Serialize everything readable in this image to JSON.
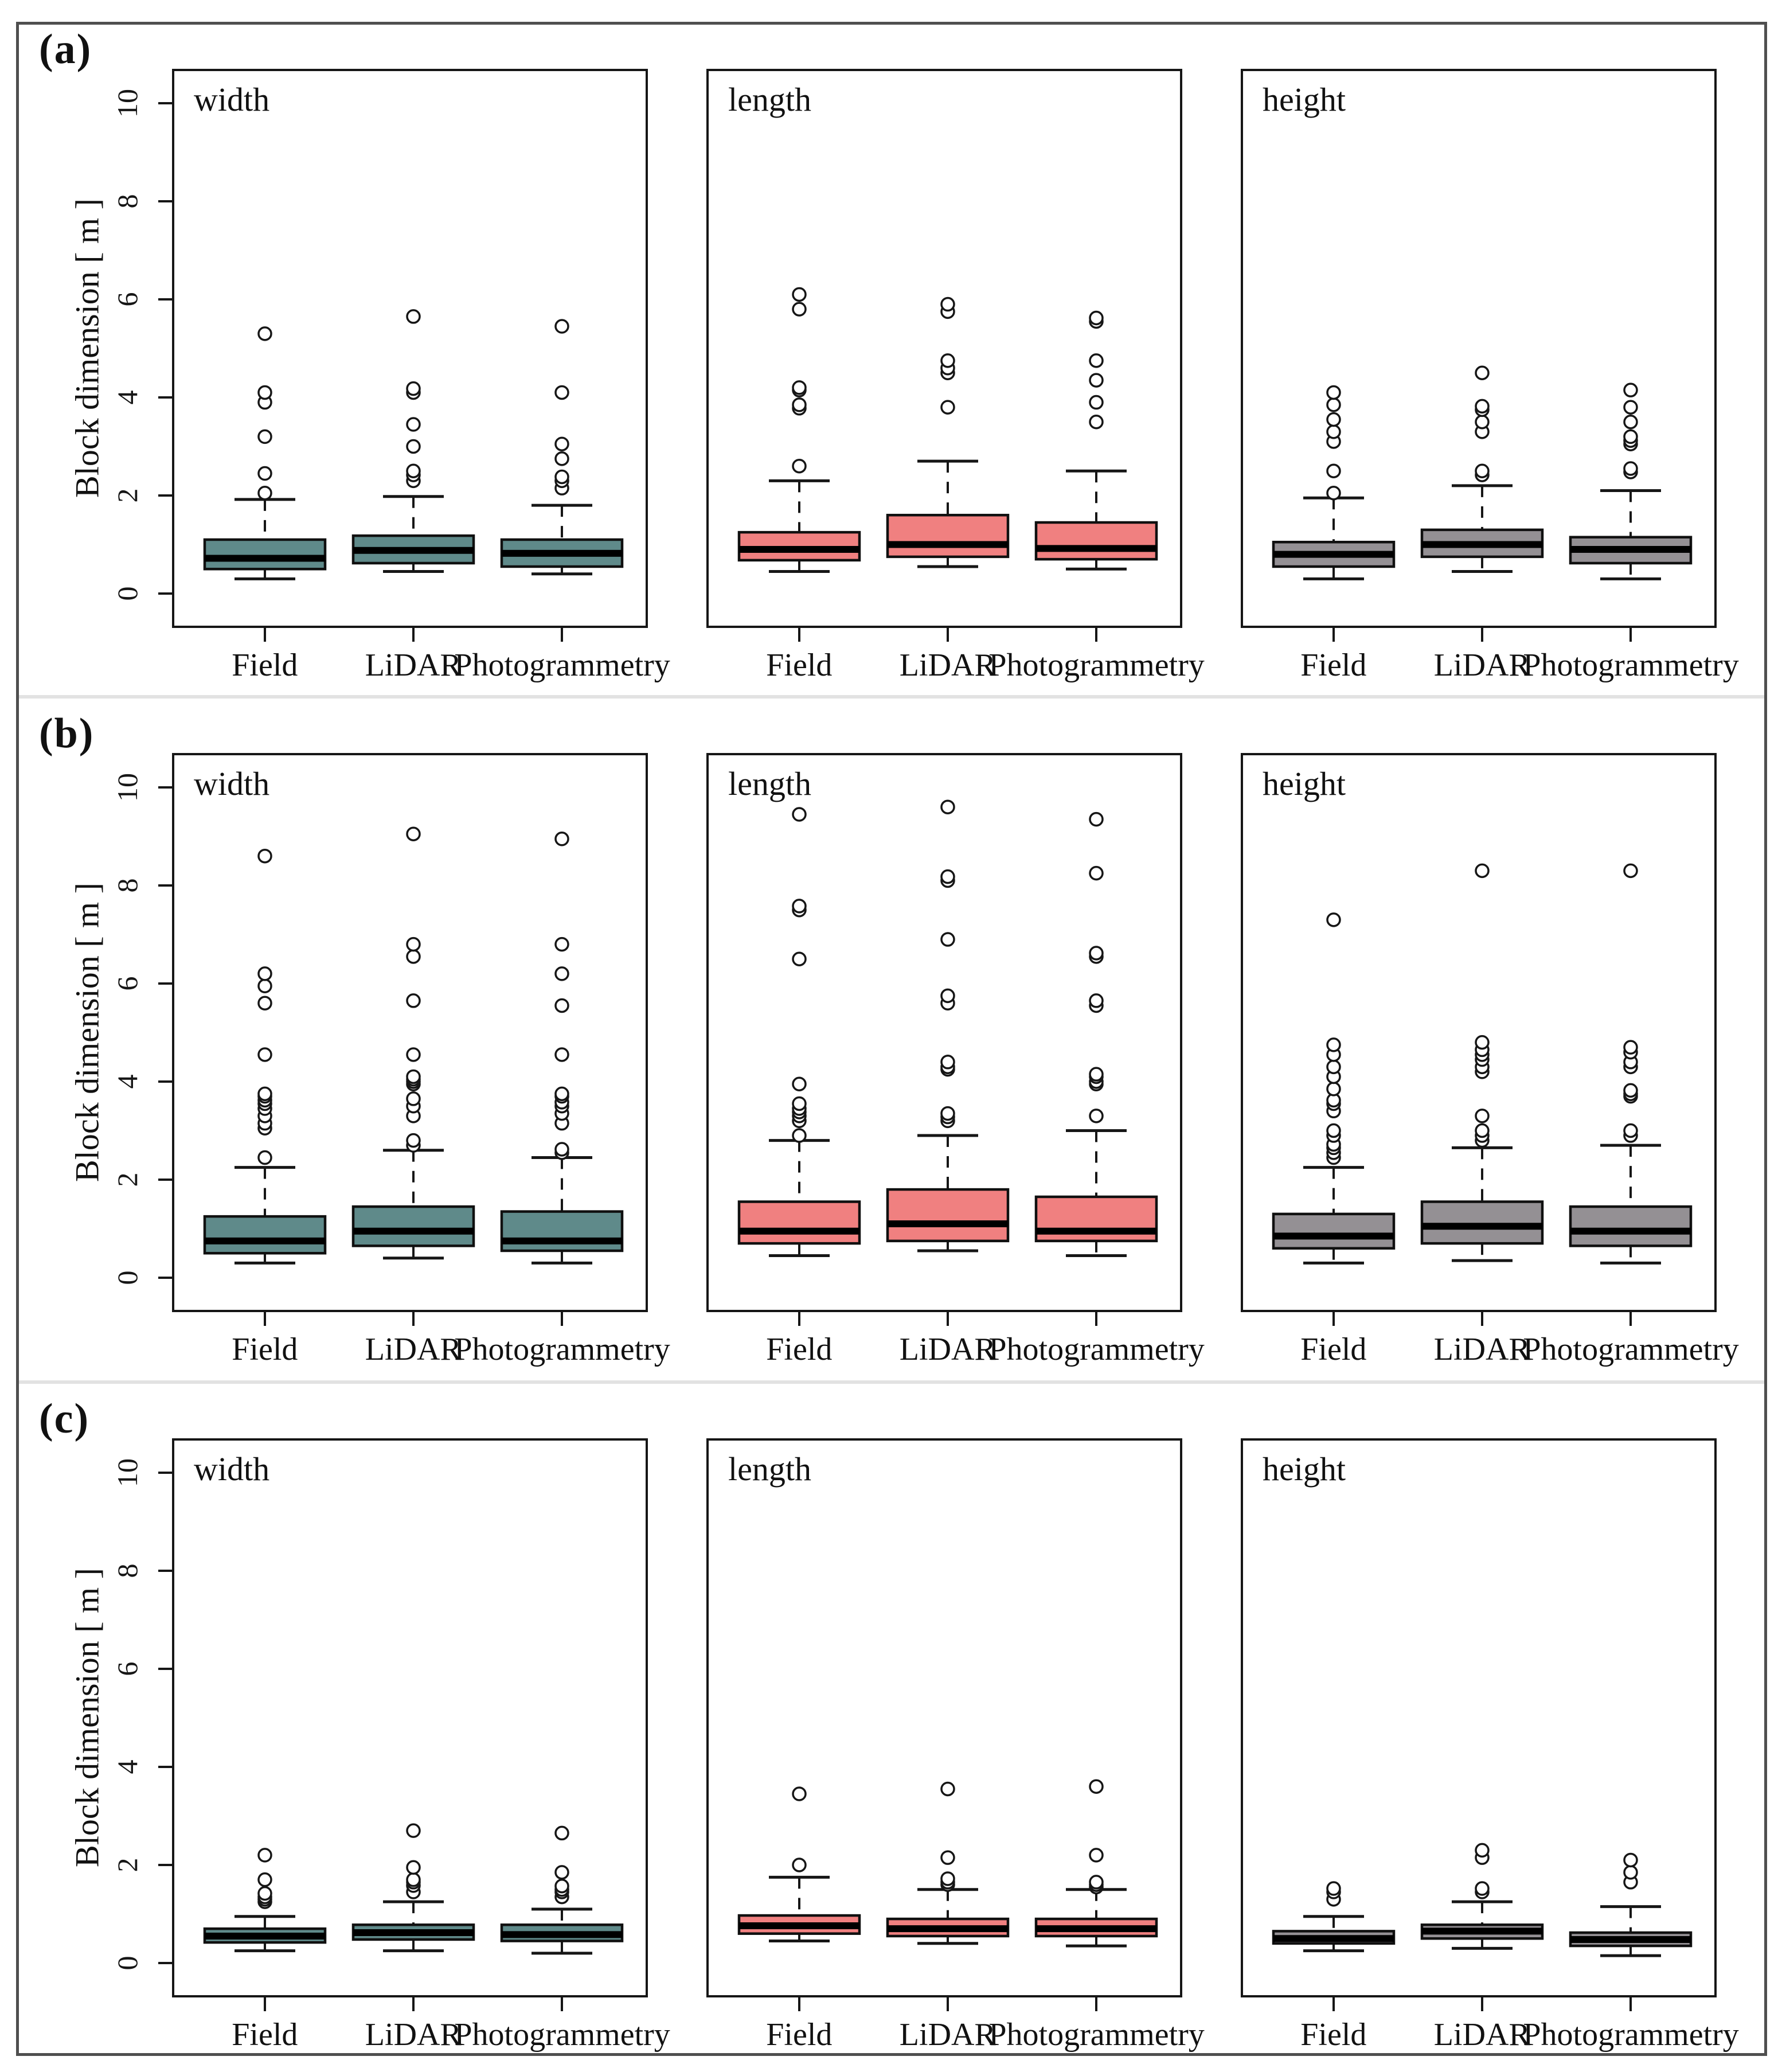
{
  "figure": {
    "ylabel": "Block dimension [ m ]",
    "yticks": [
      0,
      2,
      4,
      6,
      8,
      10
    ],
    "ylim": [
      0,
      10
    ],
    "categories": [
      "Field",
      "LiDAR",
      "Photogrammetry"
    ],
    "colors": {
      "width": "#5f8a8a",
      "length": "#f08080",
      "height": "#949094"
    },
    "rows": [
      {
        "id": "a",
        "label": "(a)"
      },
      {
        "id": "b",
        "label": "(b)"
      },
      {
        "id": "c",
        "label": "(c)"
      }
    ]
  },
  "chart_data": [
    {
      "type": "box",
      "row": "a",
      "title": "width",
      "color": "#5f8a8a",
      "ylabel": "Block dimension [ m ]",
      "ylim": [
        0,
        10
      ],
      "yticks": [
        0,
        2,
        4,
        6,
        8,
        10
      ],
      "categories": [
        "Field",
        "LiDAR",
        "Photogrammetry"
      ],
      "grid": false,
      "legend": "none",
      "series": [
        {
          "name": "Field",
          "low": 0.3,
          "q1": 0.5,
          "med": 0.72,
          "q3": 1.1,
          "high": 1.92,
          "outliers": [
            2.05,
            2.45,
            3.2,
            3.9,
            4.1,
            5.3
          ]
        },
        {
          "name": "LiDAR",
          "low": 0.45,
          "q1": 0.62,
          "med": 0.88,
          "q3": 1.18,
          "high": 1.98,
          "outliers": [
            2.3,
            2.42,
            2.5,
            3.0,
            3.45,
            4.1,
            4.18,
            5.65
          ]
        },
        {
          "name": "Photogrammetry",
          "low": 0.4,
          "q1": 0.55,
          "med": 0.82,
          "q3": 1.1,
          "high": 1.8,
          "outliers": [
            2.15,
            2.3,
            2.38,
            2.75,
            3.05,
            4.1,
            5.45
          ]
        }
      ]
    },
    {
      "type": "box",
      "row": "a",
      "title": "length",
      "color": "#f08080",
      "ylabel": "Block dimension [ m ]",
      "ylim": [
        0,
        10
      ],
      "yticks": [
        0,
        2,
        4,
        6,
        8,
        10
      ],
      "categories": [
        "Field",
        "LiDAR",
        "Photogrammetry"
      ],
      "grid": false,
      "legend": "none",
      "series": [
        {
          "name": "Field",
          "low": 0.45,
          "q1": 0.68,
          "med": 0.9,
          "q3": 1.25,
          "high": 2.3,
          "outliers": [
            2.6,
            3.78,
            3.85,
            4.15,
            4.2,
            5.8,
            6.1
          ]
        },
        {
          "name": "LiDAR",
          "low": 0.55,
          "q1": 0.75,
          "med": 1.0,
          "q3": 1.6,
          "high": 2.7,
          "outliers": [
            3.8,
            4.5,
            4.6,
            4.75,
            5.75,
            5.9
          ]
        },
        {
          "name": "Photogrammetry",
          "low": 0.5,
          "q1": 0.7,
          "med": 0.92,
          "q3": 1.45,
          "high": 2.5,
          "outliers": [
            3.5,
            3.9,
            4.35,
            4.75,
            5.55,
            5.62
          ]
        }
      ]
    },
    {
      "type": "box",
      "row": "a",
      "title": "height",
      "color": "#949094",
      "ylabel": "Block dimension [ m ]",
      "ylim": [
        0,
        10
      ],
      "yticks": [
        0,
        2,
        4,
        6,
        8,
        10
      ],
      "categories": [
        "Field",
        "LiDAR",
        "Photogrammetry"
      ],
      "grid": false,
      "legend": "none",
      "series": [
        {
          "name": "Field",
          "low": 0.3,
          "q1": 0.55,
          "med": 0.8,
          "q3": 1.05,
          "high": 1.95,
          "outliers": [
            2.05,
            2.5,
            3.1,
            3.3,
            3.55,
            3.85,
            4.1
          ]
        },
        {
          "name": "LiDAR",
          "low": 0.45,
          "q1": 0.75,
          "med": 1.0,
          "q3": 1.3,
          "high": 2.2,
          "outliers": [
            2.42,
            2.5,
            3.3,
            3.5,
            3.75,
            3.82,
            4.5
          ]
        },
        {
          "name": "Photogrammetry",
          "low": 0.3,
          "q1": 0.62,
          "med": 0.9,
          "q3": 1.15,
          "high": 2.1,
          "outliers": [
            2.48,
            2.55,
            3.05,
            3.12,
            3.2,
            3.5,
            3.8,
            4.15
          ]
        }
      ]
    },
    {
      "type": "box",
      "row": "b",
      "title": "width",
      "color": "#5f8a8a",
      "ylabel": "Block dimension [ m ]",
      "ylim": [
        0,
        10
      ],
      "yticks": [
        0,
        2,
        4,
        6,
        8,
        10
      ],
      "categories": [
        "Field",
        "LiDAR",
        "Photogrammetry"
      ],
      "grid": false,
      "legend": "none",
      "series": [
        {
          "name": "Field",
          "low": 0.3,
          "q1": 0.5,
          "med": 0.75,
          "q3": 1.25,
          "high": 2.25,
          "outliers": [
            2.45,
            3.05,
            3.15,
            3.3,
            3.45,
            3.55,
            3.62,
            3.7,
            3.75,
            4.55,
            5.6,
            5.95,
            6.2,
            8.6
          ]
        },
        {
          "name": "LiDAR",
          "low": 0.4,
          "q1": 0.65,
          "med": 0.95,
          "q3": 1.45,
          "high": 2.6,
          "outliers": [
            2.7,
            2.8,
            3.3,
            3.5,
            3.65,
            3.95,
            4.0,
            4.05,
            4.1,
            4.55,
            5.65,
            6.55,
            6.8,
            9.05
          ]
        },
        {
          "name": "Photogrammetry",
          "low": 0.3,
          "q1": 0.55,
          "med": 0.75,
          "q3": 1.35,
          "high": 2.45,
          "outliers": [
            2.55,
            2.62,
            3.15,
            3.35,
            3.5,
            3.58,
            3.7,
            3.75,
            4.55,
            5.55,
            6.2,
            6.8,
            8.95
          ]
        }
      ]
    },
    {
      "type": "box",
      "row": "b",
      "title": "length",
      "color": "#f08080",
      "ylabel": "Block dimension [ m ]",
      "ylim": [
        0,
        10
      ],
      "yticks": [
        0,
        2,
        4,
        6,
        8,
        10
      ],
      "categories": [
        "Field",
        "LiDAR",
        "Photogrammetry"
      ],
      "grid": false,
      "legend": "none",
      "series": [
        {
          "name": "Field",
          "low": 0.45,
          "q1": 0.7,
          "med": 0.95,
          "q3": 1.55,
          "high": 2.8,
          "outliers": [
            2.9,
            3.2,
            3.3,
            3.38,
            3.45,
            3.55,
            3.95,
            6.5,
            7.5,
            7.58,
            9.45
          ]
        },
        {
          "name": "LiDAR",
          "low": 0.55,
          "q1": 0.75,
          "med": 1.1,
          "q3": 1.8,
          "high": 2.9,
          "outliers": [
            3.2,
            3.28,
            3.35,
            4.25,
            4.3,
            4.4,
            5.6,
            5.75,
            6.9,
            8.1,
            8.18,
            9.6
          ]
        },
        {
          "name": "Photogrammetry",
          "low": 0.45,
          "q1": 0.75,
          "med": 0.95,
          "q3": 1.65,
          "high": 3.0,
          "outliers": [
            3.3,
            3.95,
            4.0,
            4.1,
            4.15,
            5.55,
            5.65,
            6.55,
            6.62,
            8.25,
            9.35
          ]
        }
      ]
    },
    {
      "type": "box",
      "row": "b",
      "title": "height",
      "color": "#949094",
      "ylabel": "Block dimension [ m ]",
      "ylim": [
        0,
        10
      ],
      "yticks": [
        0,
        2,
        4,
        6,
        8,
        10
      ],
      "categories": [
        "Field",
        "LiDAR",
        "Photogrammetry"
      ],
      "grid": false,
      "legend": "none",
      "series": [
        {
          "name": "Field",
          "low": 0.3,
          "q1": 0.6,
          "med": 0.85,
          "q3": 1.3,
          "high": 2.25,
          "outliers": [
            2.45,
            2.55,
            2.65,
            2.72,
            2.9,
            3.0,
            3.4,
            3.55,
            3.62,
            3.85,
            4.1,
            4.3,
            4.55,
            4.75,
            7.3
          ]
        },
        {
          "name": "LiDAR",
          "low": 0.35,
          "q1": 0.7,
          "med": 1.05,
          "q3": 1.55,
          "high": 2.65,
          "outliers": [
            2.8,
            2.9,
            3.0,
            3.3,
            4.2,
            4.3,
            4.45,
            4.55,
            4.65,
            4.8,
            8.3
          ]
        },
        {
          "name": "Photogrammetry",
          "low": 0.3,
          "q1": 0.65,
          "med": 0.95,
          "q3": 1.45,
          "high": 2.7,
          "outliers": [
            2.9,
            3.0,
            3.7,
            3.75,
            3.82,
            4.3,
            4.4,
            4.6,
            4.7,
            8.3
          ]
        }
      ]
    },
    {
      "type": "box",
      "row": "c",
      "title": "width",
      "color": "#5f8a8a",
      "ylabel": "Block dimension [ m ]",
      "ylim": [
        0,
        10
      ],
      "yticks": [
        0,
        2,
        4,
        6,
        8,
        10
      ],
      "categories": [
        "Field",
        "LiDAR",
        "Photogrammetry"
      ],
      "grid": false,
      "legend": "none",
      "series": [
        {
          "name": "Field",
          "low": 0.25,
          "q1": 0.42,
          "med": 0.55,
          "q3": 0.7,
          "high": 0.95,
          "outliers": [
            1.25,
            1.3,
            1.35,
            1.42,
            1.7,
            2.2
          ]
        },
        {
          "name": "LiDAR",
          "low": 0.25,
          "q1": 0.48,
          "med": 0.62,
          "q3": 0.78,
          "high": 1.25,
          "outliers": [
            1.45,
            1.58,
            1.65,
            1.7,
            1.95,
            2.7
          ]
        },
        {
          "name": "Photogrammetry",
          "low": 0.2,
          "q1": 0.45,
          "med": 0.58,
          "q3": 0.78,
          "high": 1.1,
          "outliers": [
            1.35,
            1.45,
            1.5,
            1.57,
            1.85,
            2.65
          ]
        }
      ]
    },
    {
      "type": "box",
      "row": "c",
      "title": "length",
      "color": "#f08080",
      "ylabel": "Block dimension [ m ]",
      "ylim": [
        0,
        10
      ],
      "yticks": [
        0,
        2,
        4,
        6,
        8,
        10
      ],
      "categories": [
        "Field",
        "LiDAR",
        "Photogrammetry"
      ],
      "grid": false,
      "legend": "none",
      "series": [
        {
          "name": "Field",
          "low": 0.45,
          "q1": 0.6,
          "med": 0.76,
          "q3": 0.97,
          "high": 1.75,
          "outliers": [
            2.0,
            3.45
          ]
        },
        {
          "name": "LiDAR",
          "low": 0.4,
          "q1": 0.55,
          "med": 0.7,
          "q3": 0.9,
          "high": 1.5,
          "outliers": [
            1.6,
            1.65,
            1.72,
            2.15,
            3.55
          ]
        },
        {
          "name": "Photogrammetry",
          "low": 0.35,
          "q1": 0.55,
          "med": 0.7,
          "q3": 0.9,
          "high": 1.5,
          "outliers": [
            1.55,
            1.6,
            1.65,
            2.2,
            3.6
          ]
        }
      ]
    },
    {
      "type": "box",
      "row": "c",
      "title": "height",
      "color": "#949094",
      "ylabel": "Block dimension [ m ]",
      "ylim": [
        0,
        10
      ],
      "yticks": [
        0,
        2,
        4,
        6,
        8,
        10
      ],
      "categories": [
        "Field",
        "LiDAR",
        "Photogrammetry"
      ],
      "grid": false,
      "legend": "none",
      "series": [
        {
          "name": "Field",
          "low": 0.25,
          "q1": 0.4,
          "med": 0.5,
          "q3": 0.65,
          "high": 0.95,
          "outliers": [
            1.3,
            1.45,
            1.52
          ]
        },
        {
          "name": "LiDAR",
          "low": 0.3,
          "q1": 0.5,
          "med": 0.65,
          "q3": 0.78,
          "high": 1.25,
          "outliers": [
            1.45,
            1.52,
            2.15,
            2.3
          ]
        },
        {
          "name": "Photogrammetry",
          "low": 0.15,
          "q1": 0.35,
          "med": 0.48,
          "q3": 0.62,
          "high": 1.15,
          "outliers": [
            1.65,
            1.85,
            2.1
          ]
        }
      ]
    }
  ]
}
